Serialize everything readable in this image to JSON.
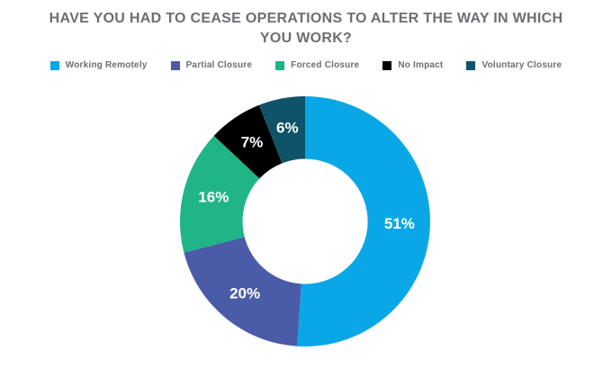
{
  "title": "HAVE YOU HAD TO CEASE OPERATIONS TO ALTER THE WAY IN WHICH YOU WORK?",
  "colors": {
    "background": "#ffffff",
    "title_text": "#6d6e71",
    "legend_text": "#6d6e71",
    "slice_label_text": "#ffffff"
  },
  "chart_data": {
    "type": "pie",
    "subtype": "donut",
    "title": "HAVE YOU HAD TO CEASE OPERATIONS TO ALTER THE WAY IN WHICH YOU WORK?",
    "categories": [
      "Working Remotely",
      "Partial Closure",
      "Forced Closure",
      "No Impact",
      "Voluntary Closure"
    ],
    "values": [
      51,
      20,
      16,
      7,
      6
    ],
    "labels": [
      "51%",
      "20%",
      "16%",
      "7%",
      "6%"
    ],
    "unit": "%",
    "colors": [
      "#0aa7e6",
      "#4a5ba8",
      "#1fb587",
      "#000000",
      "#0f5368"
    ],
    "start_angle_deg": 0,
    "direction": "clockwise",
    "inner_radius_ratio": 0.5,
    "legend_position": "top",
    "data_labels": "inside-white-bold"
  }
}
